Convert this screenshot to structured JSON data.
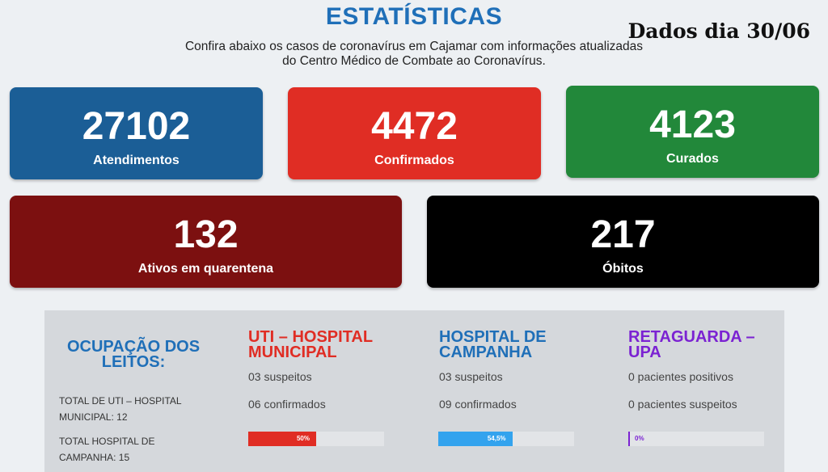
{
  "header": {
    "title": "ESTATÍSTICAS",
    "subtitle_line1": "Confira abaixo os casos de coronavírus em Cajamar com informações atualizadas",
    "subtitle_line2": "do Centro Médico de Combate ao Coronavírus.",
    "date_stamp": "Dados dia 30/06"
  },
  "cards": [
    {
      "value": "27102",
      "label": "Atendimentos",
      "color": "#1b5e96"
    },
    {
      "value": "4472",
      "label": "Confirmados",
      "color": "#e02d24"
    },
    {
      "value": "4123",
      "label": "Curados",
      "color": "#22883a"
    },
    {
      "value": "132",
      "label": "Ativos em quarentena",
      "color": "#7c1010"
    },
    {
      "value": "217",
      "label": "Óbitos",
      "color": "#000000"
    }
  ],
  "occupancy": {
    "title_line1": "OCUPAÇÃO DOS",
    "title_line2": "LEITOS:",
    "totals": [
      {
        "line1": "TOTAL DE UTI – HOSPITAL",
        "line2_label": "MUNICIPAL:",
        "line2_value": "12"
      },
      {
        "line1": "TOTAL HOSPITAL DE",
        "line2_label": "CAMPANHA:",
        "line2_value": "15"
      }
    ],
    "columns": [
      {
        "title_line1": "UTI – HOSPITAL",
        "title_line2": "MUNICIPAL",
        "title_color": "#e02d24",
        "line1": "03 suspeitos",
        "line2": "06 confirmados",
        "bar_label": "50%",
        "bar_fraction": 0.5,
        "bar_color": "#e02d24"
      },
      {
        "title_line1": "HOSPITAL DE",
        "title_line2": "CAMPANHA",
        "title_color": "#1f6fb8",
        "line1": "03 suspeitos",
        "line2": "09 confirmados",
        "bar_label": "54,5%",
        "bar_fraction": 0.545,
        "bar_color": "#33a3ee"
      },
      {
        "title_line1": "RETAGUARDA –",
        "title_line2": "UPA",
        "title_color": "#7b22d2",
        "line1": "0 pacientes positivos",
        "line2": "0 pacientes suspeitos",
        "bar_label": "0%",
        "bar_fraction": 0.0,
        "bar_color": "#7b22d2"
      }
    ]
  }
}
